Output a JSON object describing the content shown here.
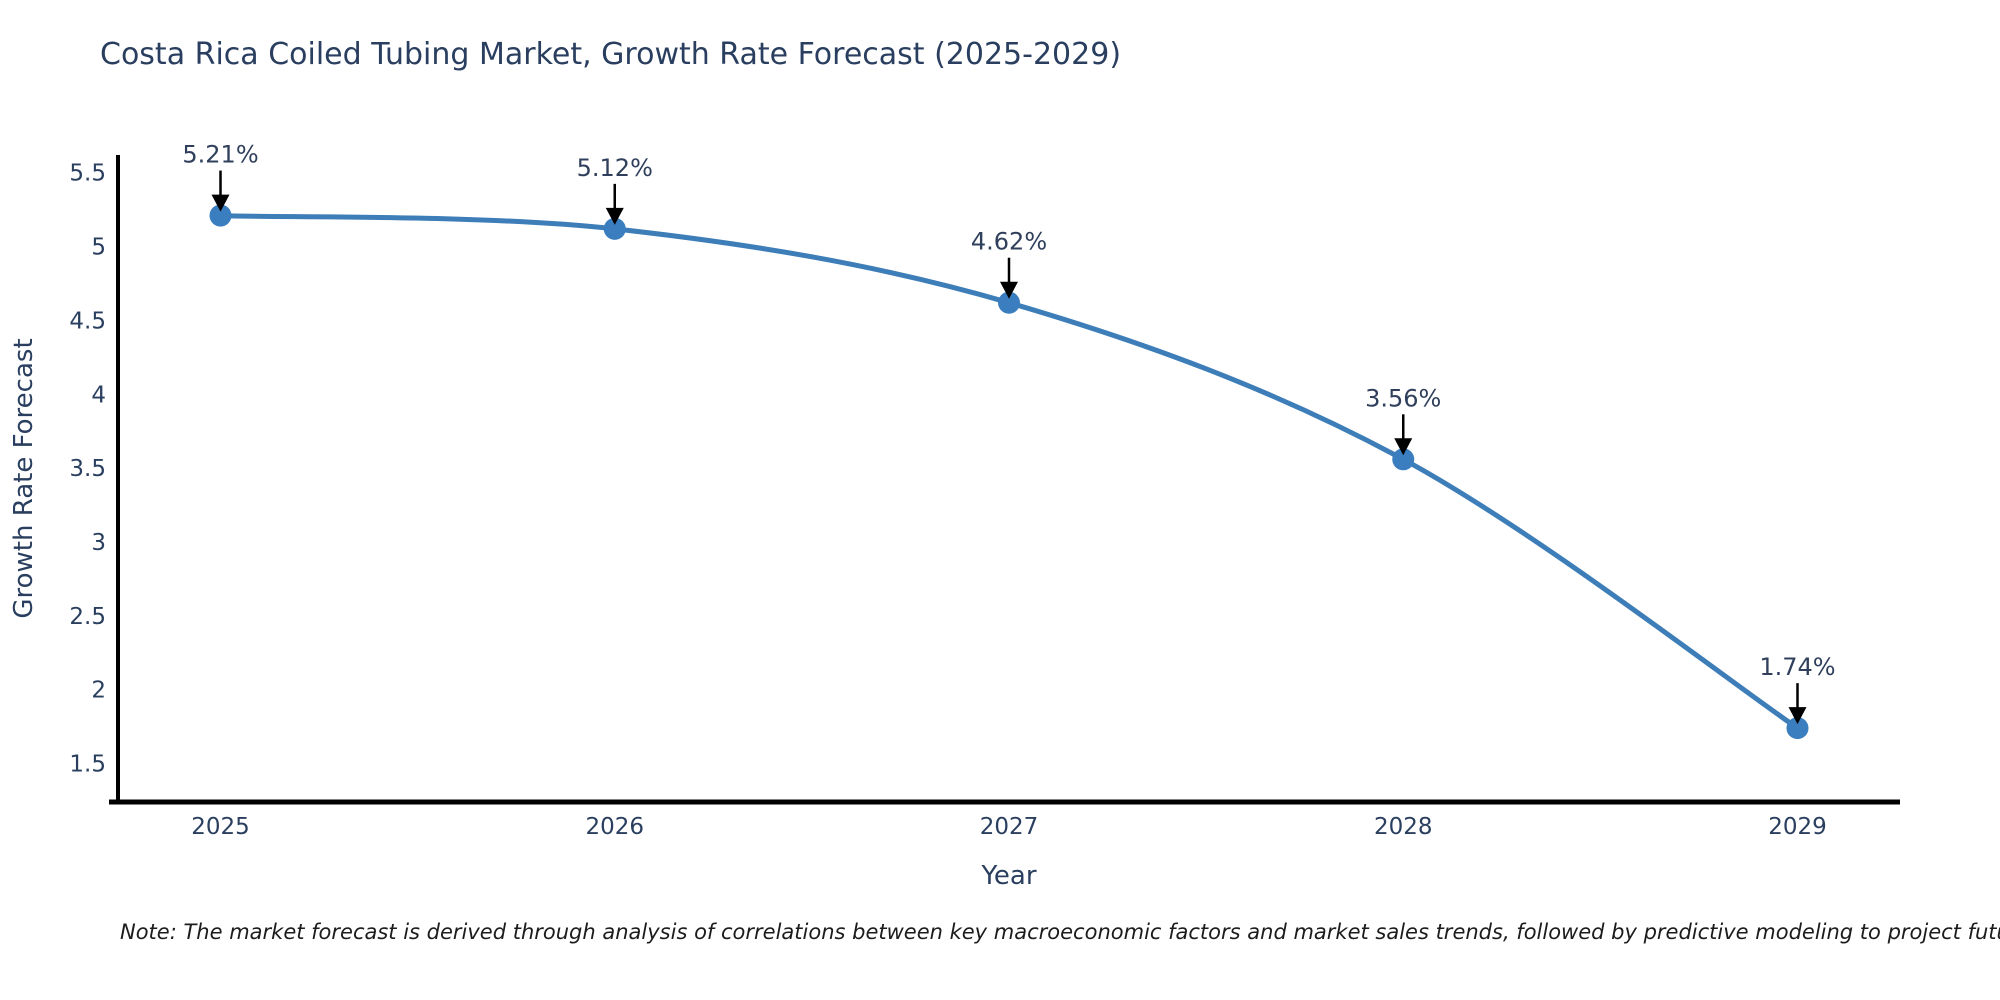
{
  "title": "Costa Rica Coiled Tubing Market, Growth Rate Forecast (2025-2029)",
  "note": "Note: The market forecast is derived through analysis of correlations between key macroeconomic factors and market sales trends, followed by predictive modeling to project future sales",
  "chart_data": {
    "type": "line",
    "title": "Costa Rica Coiled Tubing Market, Growth Rate Forecast (2025-2029)",
    "xlabel": "Year",
    "ylabel": "Growth Rate Forecast",
    "categories": [
      "2025",
      "2026",
      "2027",
      "2028",
      "2029"
    ],
    "x": [
      2025,
      2026,
      2027,
      2028,
      2029
    ],
    "series": [
      {
        "name": "Growth Rate Forecast",
        "values": [
          5.21,
          5.12,
          4.62,
          3.56,
          1.74
        ]
      }
    ],
    "point_labels": [
      "5.21%",
      "5.12%",
      "4.62%",
      "3.56%",
      "1.74%"
    ],
    "yticks": [
      1.5,
      2,
      2.5,
      3,
      3.5,
      4,
      4.5,
      5,
      5.5
    ],
    "ylim": [
      1.24,
      5.62
    ],
    "xlim": [
      2024.74,
      2029.26
    ],
    "grid": false,
    "legend_position": "none",
    "colors": {
      "line": "#3d7db8",
      "marker": "#3a7ec0",
      "axis": "#000000",
      "text": "#2a3f5f",
      "annotation_arrow": "#000000"
    }
  }
}
